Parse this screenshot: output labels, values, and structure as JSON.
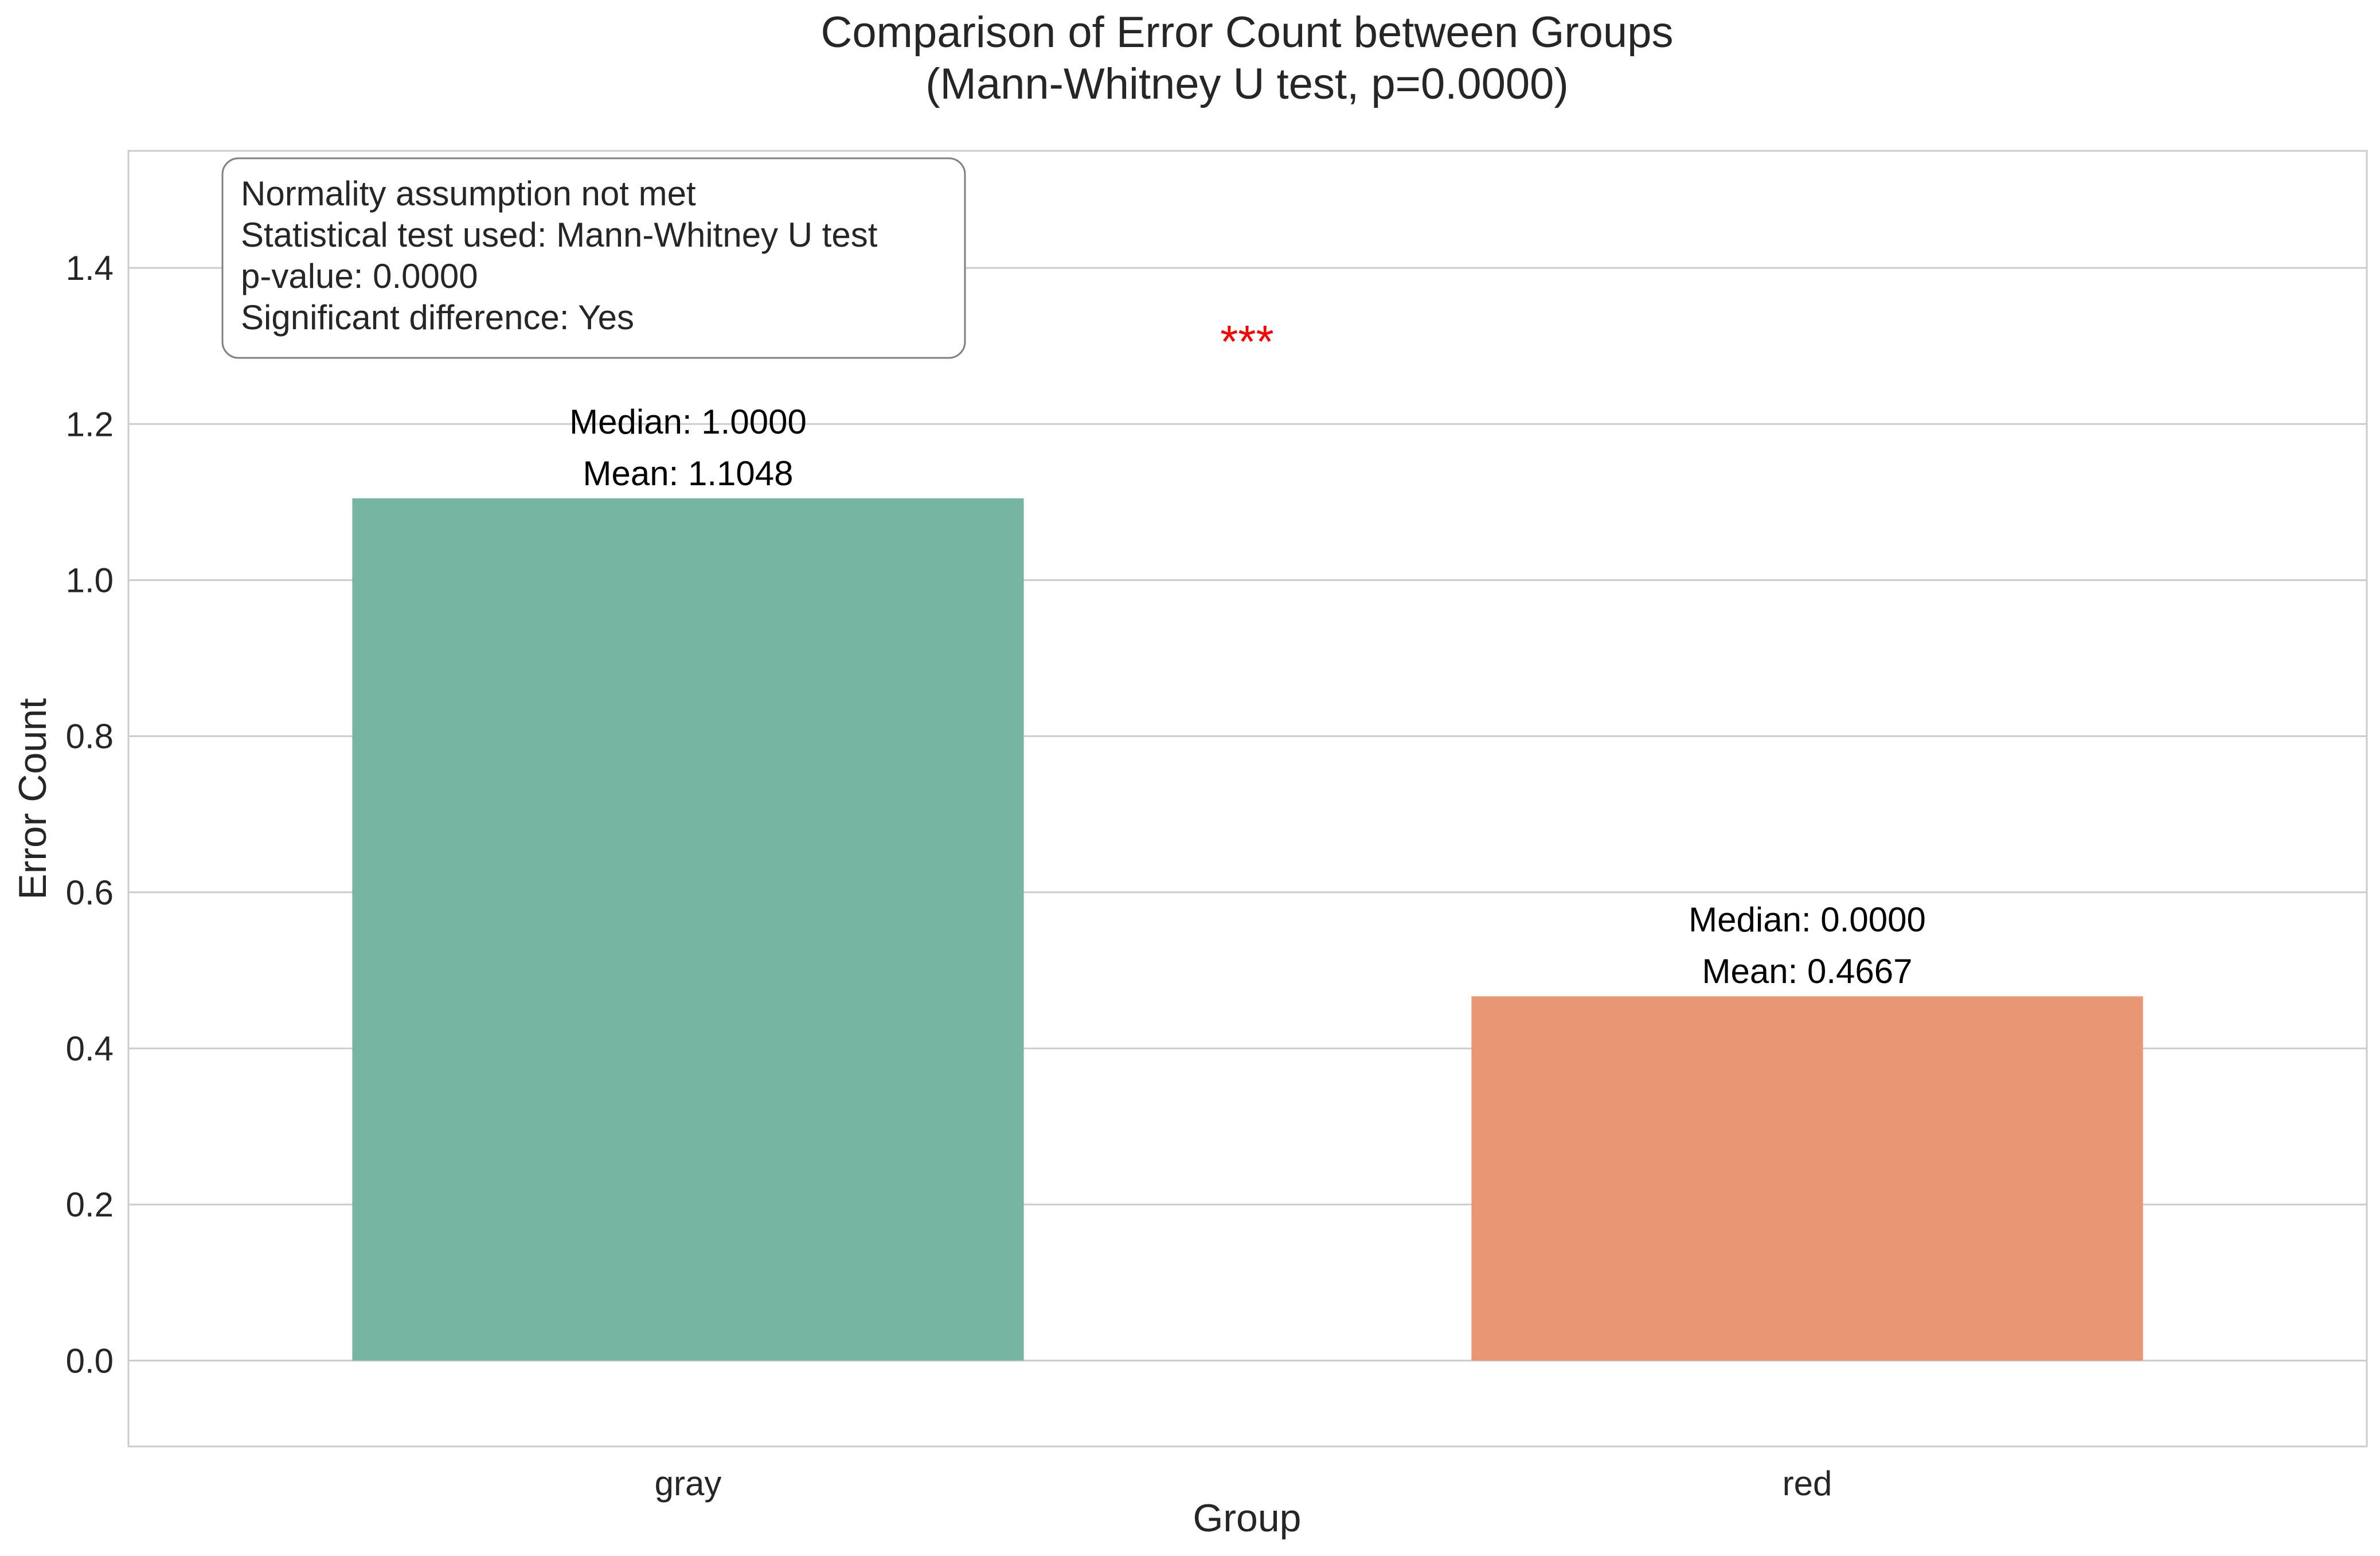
{
  "chart_data": {
    "type": "bar",
    "title": "Comparison of Error Count between Groups",
    "subtitle": "(Mann-Whitney U test, p=0.0000)",
    "xlabel": "Group",
    "ylabel": "Error Count",
    "categories": [
      "gray",
      "red"
    ],
    "values": [
      1.1048,
      0.4667
    ],
    "bar_colors": [
      "#76b5a1",
      "#e99675"
    ],
    "bar_labels": [
      {
        "median": "Median: 1.0000",
        "mean": "Mean: 1.1048"
      },
      {
        "median": "Median: 0.0000",
        "mean": "Mean: 0.4667"
      }
    ],
    "ylim": [
      -0.11,
      1.55
    ],
    "yticks": [
      0.0,
      0.2,
      0.4,
      0.6,
      0.8,
      1.0,
      1.2,
      1.4
    ],
    "ytick_labels": [
      "0.0",
      "0.2",
      "0.4",
      "0.6",
      "0.8",
      "1.0",
      "1.2",
      "1.4"
    ],
    "grid": true,
    "significance": {
      "marker": "***",
      "color": "#ff0000",
      "y": 1.3
    },
    "annotation_box": {
      "lines": [
        "Normality assumption not met",
        "Statistical test used: Mann-Whitney U test",
        "p-value: 0.0000",
        "Significant difference: Yes"
      ],
      "placement": "top-left"
    }
  }
}
